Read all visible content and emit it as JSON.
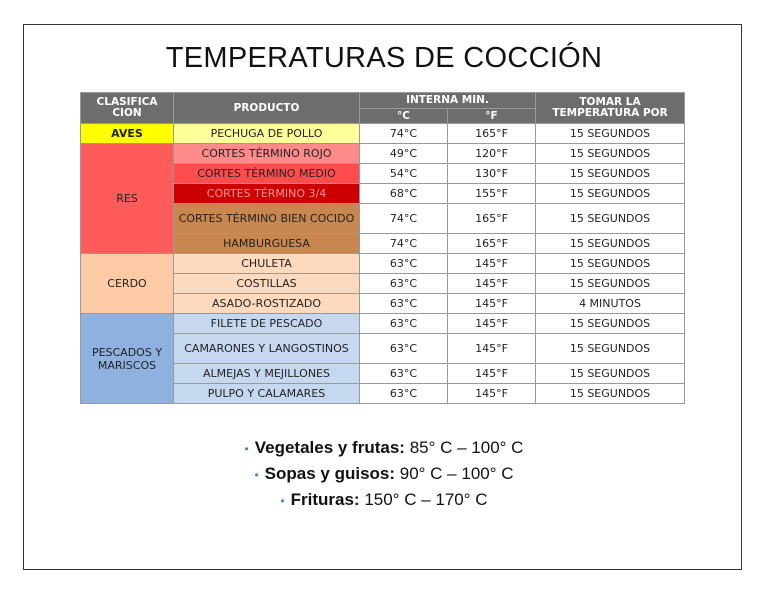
{
  "title": "TEMPERATURAS DE COCCIÓN",
  "colors": {
    "header_bg": "#6d6d6d",
    "aves": "#ffff00",
    "aves_product": "#ffff99",
    "res_cat": "#ff5b5b",
    "res_rojo": "#ff8a8a",
    "res_medio": "#ff4d4d",
    "res_34": "#cc0000",
    "res_cocido": "#c8874f",
    "cerdo": "#fccaa4",
    "cerdo_product": "#fdd9bd",
    "pescado_cat": "#8fb1e0",
    "pescado_product": "#c5d8f0"
  },
  "table": {
    "headers": {
      "clasificacion": "CLASIFICA CION",
      "producto": "PRODUCTO",
      "interna": "INTERNA MIN.",
      "c": "°C",
      "f": "°F",
      "tomar": "TOMAR LA TEMPERATURA POR"
    },
    "categories": {
      "aves": "AVES",
      "res": "RES",
      "cerdo": "CERDO",
      "pescados": "PESCADOS Y MARISCOS"
    },
    "rows": [
      {
        "producto": "PECHUGA DE POLLO",
        "c": "74°C",
        "f": "165°F",
        "t": "15 SEGUNDOS"
      },
      {
        "producto": "CORTES TÉRMINO ROJO",
        "c": "49°C",
        "f": "120°F",
        "t": "15 SEGUNDOS"
      },
      {
        "producto": "CORTES TÉRMINO MEDIO",
        "c": "54°C",
        "f": "130°F",
        "t": "15 SEGUNDOS"
      },
      {
        "producto": "CORTES TÉRMINO 3/4",
        "c": "68°C",
        "f": "155°F",
        "t": "15 SEGUNDOS"
      },
      {
        "producto": "CORTES TÉRMINO BIEN COCIDO",
        "c": "74°C",
        "f": "165°F",
        "t": "15 SEGUNDOS"
      },
      {
        "producto": "HAMBURGUESA",
        "c": "74°C",
        "f": "165°F",
        "t": "15 SEGUNDOS"
      },
      {
        "producto": "CHULETA",
        "c": "63°C",
        "f": "145°F",
        "t": "15 SEGUNDOS"
      },
      {
        "producto": "COSTILLAS",
        "c": "63°C",
        "f": "145°F",
        "t": "15 SEGUNDOS"
      },
      {
        "producto": "ASADO-ROSTIZADO",
        "c": "63°C",
        "f": "145°F",
        "t": "4 MINUTOS"
      },
      {
        "producto": "FILETE DE PESCADO",
        "c": "63°C",
        "f": "145°F",
        "t": "15 SEGUNDOS"
      },
      {
        "producto": "CAMARONES Y LANGOSTINOS",
        "c": "63°C",
        "f": "145°F",
        "t": "15 SEGUNDOS"
      },
      {
        "producto": "ALMEJAS Y MEJILLONES",
        "c": "63°C",
        "f": "145°F",
        "t": "15 SEGUNDOS"
      },
      {
        "producto": "PULPO Y CALAMARES",
        "c": "63°C",
        "f": "145°F",
        "t": "15 SEGUNDOS"
      }
    ]
  },
  "bullets": [
    {
      "label": "Vegetales y frutas:",
      "value": " 85° C – 100° C"
    },
    {
      "label": "Sopas y guisos:",
      "value": " 90° C – 100° C"
    },
    {
      "label": "Frituras:",
      "value": " 150° C – 170° C"
    }
  ]
}
